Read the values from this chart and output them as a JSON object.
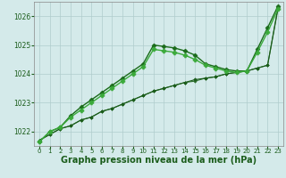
{
  "background_color": "#d4eaea",
  "plot_bg_color": "#d4eaea",
  "grid_color": "#b0cccc",
  "xlabel": "Graphe pression niveau de la mer (hPa)",
  "xlabel_fontsize": 7.0,
  "ylim": [
    1021.5,
    1026.5
  ],
  "xlim": [
    -0.5,
    23.5
  ],
  "yticks": [
    1022,
    1023,
    1024,
    1025,
    1026
  ],
  "xticks": [
    0,
    1,
    2,
    3,
    4,
    5,
    6,
    7,
    8,
    9,
    10,
    11,
    12,
    13,
    14,
    15,
    16,
    17,
    18,
    19,
    20,
    21,
    22,
    23
  ],
  "series": [
    {
      "x": [
        0,
        1,
        2,
        3,
        4,
        5,
        6,
        7,
        8,
        9,
        10,
        11,
        12,
        13,
        14,
        15,
        16,
        17,
        18,
        19,
        20,
        21,
        22,
        23
      ],
      "y": [
        1021.7,
        1021.9,
        1022.1,
        1022.2,
        1022.4,
        1022.5,
        1022.7,
        1022.8,
        1022.95,
        1023.1,
        1023.25,
        1023.4,
        1023.5,
        1023.6,
        1023.7,
        1023.75,
        1023.85,
        1023.9,
        1024.0,
        1024.05,
        1024.1,
        1024.2,
        1024.3,
        1026.3
      ],
      "color": "#2d6e2d",
      "marker": "D",
      "markersize": 1.8,
      "linewidth": 0.8
    },
    {
      "x": [
        0,
        1,
        2,
        3,
        4,
        5,
        6,
        7,
        8,
        9,
        10,
        11,
        12,
        13,
        14,
        15,
        16,
        17,
        18,
        19,
        20,
        21,
        22,
        23
      ],
      "y": [
        1021.7,
        1021.9,
        1022.1,
        1022.2,
        1022.4,
        1022.5,
        1022.7,
        1022.8,
        1022.95,
        1023.1,
        1023.25,
        1023.4,
        1023.5,
        1023.6,
        1023.7,
        1023.8,
        1023.85,
        1023.9,
        1024.0,
        1024.05,
        1024.1,
        1024.2,
        1024.3,
        1026.25
      ],
      "color": "#1a5c1a",
      "marker": "D",
      "markersize": 1.8,
      "linewidth": 0.8
    },
    {
      "x": [
        0,
        1,
        2,
        3,
        4,
        5,
        6,
        7,
        8,
        9,
        10,
        11,
        12,
        13,
        14,
        15,
        16,
        17,
        18,
        19,
        20,
        21,
        22,
        23
      ],
      "y": [
        1021.65,
        1022.0,
        1022.15,
        1022.55,
        1022.85,
        1023.1,
        1023.35,
        1023.6,
        1023.85,
        1024.1,
        1024.35,
        1025.0,
        1024.95,
        1024.9,
        1024.8,
        1024.65,
        1024.35,
        1024.25,
        1024.15,
        1024.1,
        1024.1,
        1024.85,
        1025.6,
        1026.35
      ],
      "color": "#1a6b1a",
      "marker": "D",
      "markersize": 2.5,
      "linewidth": 1.0
    },
    {
      "x": [
        0,
        1,
        2,
        3,
        4,
        5,
        6,
        7,
        8,
        9,
        10,
        11,
        12,
        13,
        14,
        15,
        16,
        17,
        18,
        19,
        20,
        21,
        22,
        23
      ],
      "y": [
        1021.65,
        1022.0,
        1022.15,
        1022.5,
        1022.75,
        1023.0,
        1023.25,
        1023.5,
        1023.75,
        1024.0,
        1024.25,
        1024.85,
        1024.8,
        1024.75,
        1024.65,
        1024.5,
        1024.3,
        1024.2,
        1024.1,
        1024.05,
        1024.1,
        1024.75,
        1025.45,
        1026.25
      ],
      "color": "#3aaa3a",
      "marker": "P",
      "markersize": 3.5,
      "linewidth": 1.0
    }
  ]
}
